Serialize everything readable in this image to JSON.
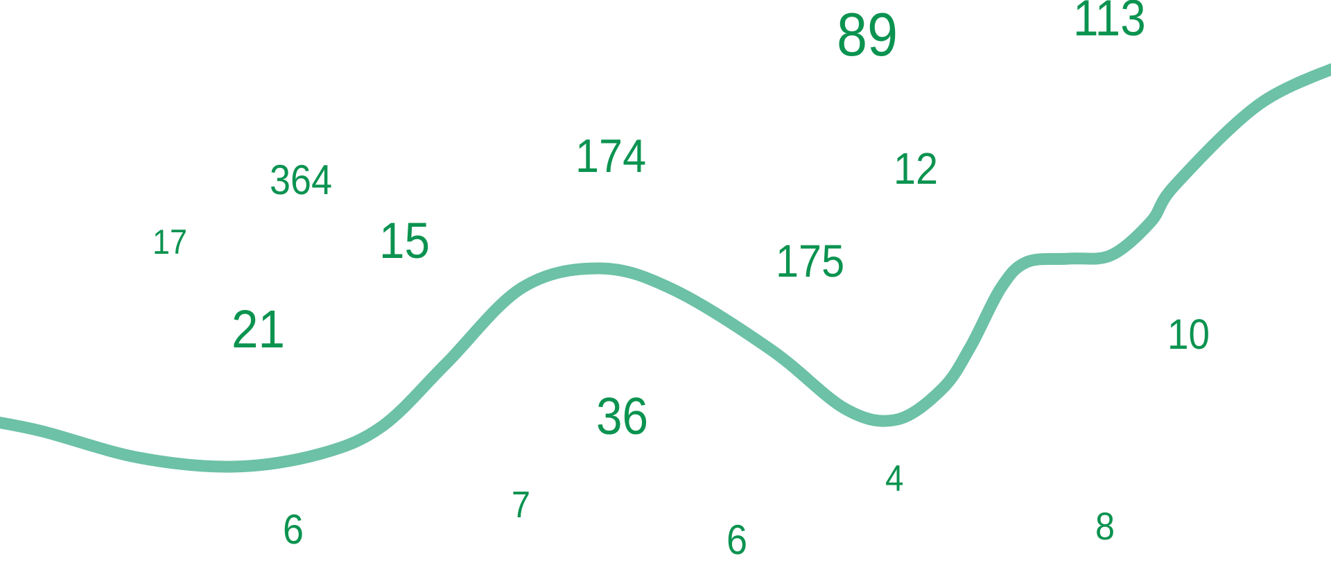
{
  "colors": {
    "number_text": "#0b9350",
    "curve_stroke": "#6cc1a6",
    "background": "#ffffff"
  },
  "numbers": [
    "89",
    "113",
    "174",
    "364",
    "12",
    "17",
    "15",
    "175",
    "21",
    "10",
    "36",
    "4",
    "7",
    "6",
    "6",
    "8"
  ]
}
